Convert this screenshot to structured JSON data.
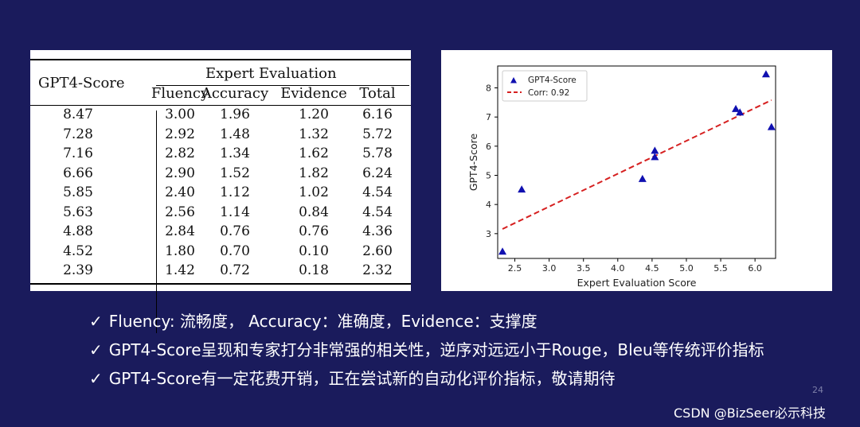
{
  "table": {
    "header_left": "GPT4-Score",
    "group_header": "Expert Evaluation",
    "columns": [
      "Fluency",
      "Accuracy",
      "Evidence",
      "Total"
    ],
    "rows": [
      [
        "8.47",
        "3.00",
        "1.96",
        "1.20",
        "6.16"
      ],
      [
        "7.28",
        "2.92",
        "1.48",
        "1.32",
        "5.72"
      ],
      [
        "7.16",
        "2.82",
        "1.34",
        "1.62",
        "5.78"
      ],
      [
        "6.66",
        "2.90",
        "1.52",
        "1.82",
        "6.24"
      ],
      [
        "5.85",
        "2.40",
        "1.12",
        "1.02",
        "4.54"
      ],
      [
        "5.63",
        "2.56",
        "1.14",
        "0.84",
        "4.54"
      ],
      [
        "4.88",
        "2.84",
        "0.76",
        "0.76",
        "4.36"
      ],
      [
        "4.52",
        "1.80",
        "0.70",
        "0.10",
        "2.60"
      ],
      [
        "2.39",
        "1.42",
        "0.72",
        "0.18",
        "2.32"
      ]
    ]
  },
  "chart_data": {
    "type": "scatter",
    "xlabel": "Expert Evaluation Score",
    "ylabel": "GPT4-Score",
    "xlim": [
      2.25,
      6.3
    ],
    "ylim": [
      2.15,
      8.75
    ],
    "xticks": [
      "2.5",
      "3.0",
      "3.5",
      "4.0",
      "4.5",
      "5.0",
      "5.5",
      "6.0"
    ],
    "yticks": [
      "3",
      "4",
      "5",
      "6",
      "7",
      "8"
    ],
    "legend_position": "top-left",
    "grid": false,
    "series": [
      {
        "name": "GPT4-Score",
        "marker": "triangle",
        "color": "#1010b0",
        "points": [
          [
            6.16,
            8.47
          ],
          [
            5.72,
            7.28
          ],
          [
            5.78,
            7.16
          ],
          [
            6.24,
            6.66
          ],
          [
            4.54,
            5.85
          ],
          [
            4.54,
            5.63
          ],
          [
            4.36,
            4.88
          ],
          [
            2.6,
            4.52
          ],
          [
            2.32,
            2.39
          ]
        ]
      },
      {
        "name": "Corr: 0.92",
        "style": "dashed-line",
        "color": "#d62020",
        "points": [
          [
            2.32,
            3.16
          ],
          [
            6.24,
            7.58
          ]
        ]
      }
    ]
  },
  "bullets": [
    "Fluency: 流畅度， Accuracy：准确度，Evidence：支撑度",
    "GPT4-Score呈现和专家打分非常强的相关性，逆序对远远小于Rouge，Bleu等传统评价指标",
    "GPT4-Score有一定花费开销，正在尝试新的自动化评价指标，敬请期待"
  ],
  "check_glyph": "✓",
  "page_number": "24",
  "watermark": "CSDN @BizSeer必示科技"
}
